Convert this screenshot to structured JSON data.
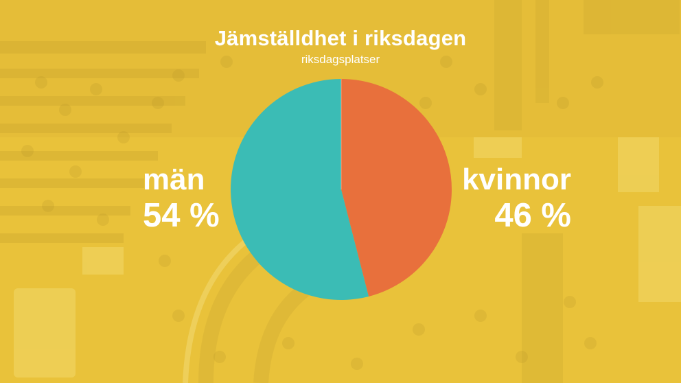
{
  "title": "Jämställdhet i riksdagen",
  "subtitle": "riksdagsplatser",
  "colors": {
    "background": "#e9c23a",
    "man": "#3bbcb5",
    "kvinnor": "#e8703c",
    "text": "#ffffff"
  },
  "chart_data": {
    "type": "pie",
    "title": "Jämställdhet i riksdagen",
    "subtitle": "riksdagsplatser",
    "slices": [
      {
        "label": "män",
        "value": 54,
        "value_label": "54 %",
        "color": "#3bbcb5"
      },
      {
        "label": "kvinnor",
        "value": 46,
        "value_label": "46 %",
        "color": "#e8703c"
      }
    ],
    "start": "top",
    "direction": "clockwise, kvinnor first"
  }
}
